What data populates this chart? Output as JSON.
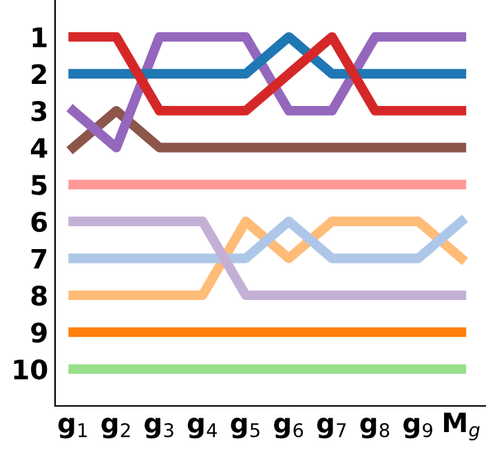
{
  "chart_data": {
    "type": "line",
    "categories": [
      "g$_{1}$",
      "g$_{2}$",
      "g$_{3}$",
      "g$_{4}$",
      "g$_{5}$",
      "g$_{6}$",
      "g$_{7}$",
      "g$_{8}$",
      "g$_{9}$",
      "M$_{g}$"
    ],
    "ylim": [
      11,
      0
    ],
    "yticks": [
      1,
      2,
      3,
      4,
      5,
      6,
      7,
      8,
      9,
      10
    ],
    "grid": false,
    "legend": false,
    "marker": "none",
    "line_style": "solid",
    "series": [
      {
        "color": "#98df8a",
        "values": [
          10,
          10,
          10,
          10,
          10,
          10,
          10,
          10,
          10,
          10
        ]
      },
      {
        "color": "#ff7f0e",
        "values": [
          9,
          9,
          9,
          9,
          9,
          9,
          9,
          9,
          9,
          9
        ]
      },
      {
        "color": "#ffbb78",
        "values": [
          8,
          8,
          8,
          8,
          6,
          7,
          6,
          6,
          6,
          7
        ]
      },
      {
        "color": "#aec7e8",
        "values": [
          7,
          7,
          7,
          7,
          7,
          6,
          7,
          7,
          7,
          6
        ]
      },
      {
        "color": "#c5b0d5",
        "values": [
          6,
          6,
          6,
          6,
          8,
          8,
          8,
          8,
          8,
          8
        ]
      },
      {
        "color": "#ff9896",
        "values": [
          5,
          5,
          5,
          5,
          5,
          5,
          5,
          5,
          5,
          5
        ]
      },
      {
        "color": "#8c564b",
        "values": [
          4,
          3,
          4,
          4,
          4,
          4,
          4,
          4,
          4,
          4
        ]
      },
      {
        "color": "#9467bd",
        "values": [
          3,
          4,
          1,
          1,
          1,
          3,
          3,
          1,
          1,
          1
        ]
      },
      {
        "color": "#1f77b4",
        "values": [
          2,
          2,
          2,
          2,
          2,
          1,
          2,
          2,
          2,
          2
        ]
      },
      {
        "color": "#d62728",
        "values": [
          1,
          1,
          3,
          3,
          3,
          2,
          1,
          3,
          3,
          3
        ]
      }
    ]
  }
}
